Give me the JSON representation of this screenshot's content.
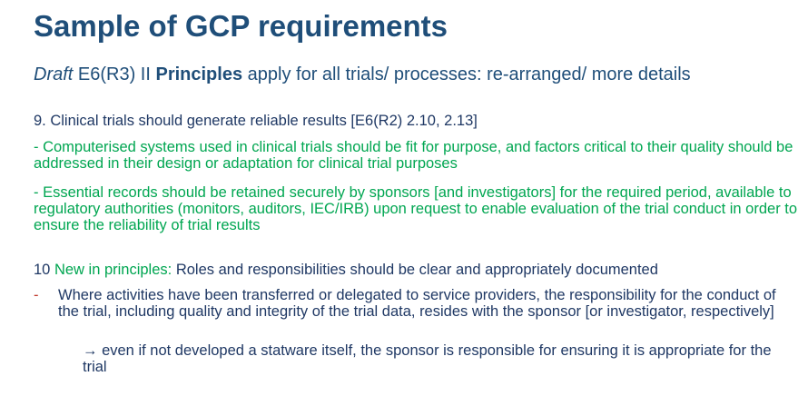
{
  "title": "Sample of GCP requirements",
  "subtitle": {
    "draft": "Draft",
    "code": " E6(R3) II ",
    "principles": "Principles",
    "rest": " apply for all trials/ processes: re-arranged/ more details"
  },
  "principle9": {
    "heading": "9. Clinical trials should generate reliable results [E6(R2) 2.10, 2.13]",
    "computerised": "- Computerised systems used in clinical trials should be fit for purpose, and factors critical to their quality should be addressed in their design or adaptation for clinical trial purposes",
    "essential": "- Essential records should be retained securely by sponsors [and investigators] for the required period, available to regulatory authorities (monitors, auditors, IEC/IRB) upon request to enable evaluation of the trial conduct in order to ensure the reliability of trial results"
  },
  "principle10": {
    "number": "10 ",
    "new_label": "New in principles:",
    "text": " Roles and responsibilities should be clear and appropriately documented",
    "bullet_dash": "-",
    "bullet_text": "Where activities have been transferred or delegated to service providers, the responsibility for the conduct of the trial, including quality and integrity of the trial data, resides with the sponsor [or investigator, respectively]",
    "sub_arrow": "→",
    "sub_text": " even if not developed a statware itself, the sponsor is responsible for ensuring it is appropriate for the trial"
  },
  "colors": {
    "title": "#1f4e79",
    "body": "#1f3864",
    "green": "#00a651",
    "dash": "#c0392b"
  }
}
